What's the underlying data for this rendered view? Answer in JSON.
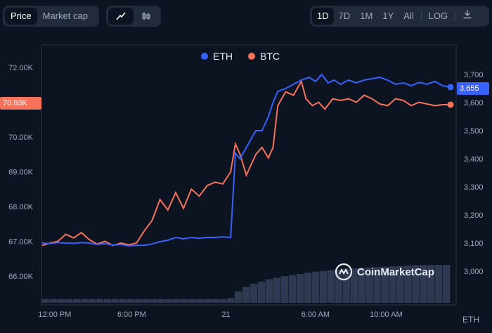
{
  "toolbar": {
    "metric_tabs": [
      {
        "label": "Price",
        "active": true
      },
      {
        "label": "Market cap",
        "active": false
      }
    ],
    "chart_type_icons": [
      "line-chart-icon",
      "candlestick-icon"
    ],
    "ranges": [
      "1D",
      "7D",
      "1M",
      "1Y",
      "All"
    ],
    "active_range": "1D",
    "log_label": "LOG",
    "download_icon": "download-icon"
  },
  "watermark": "CoinMarketCap",
  "colors": {
    "background": "#0d1421",
    "eth": "#3861fb",
    "btc": "#f7725a",
    "grid": "#2a3344",
    "volume": "#2f3a52"
  },
  "chart_data": {
    "type": "line",
    "legend": [
      "ETH",
      "BTC"
    ],
    "legend_position": "top-center",
    "x_ticks": [
      "12:00 PM",
      "6:00 PM",
      "21",
      "6:00 AM",
      "10:00 AM"
    ],
    "left_axis": {
      "ticks": [
        "66.00K",
        "67.00K",
        "68.00K",
        "69.00K",
        "70.00K",
        "72.00K"
      ],
      "current": "70.93K"
    },
    "right_axis": {
      "ticks": [
        "3,000",
        "3,100",
        "3,200",
        "3,300",
        "3,400",
        "3,500",
        "3,600",
        "3,700"
      ],
      "current": "3,655",
      "unit": "ETH"
    },
    "series": [
      {
        "name": "ETH",
        "axis": "right",
        "points": [
          [
            0,
            3100
          ],
          [
            0.5,
            3098
          ],
          [
            1,
            3102
          ],
          [
            1.5,
            3100
          ],
          [
            2,
            3099
          ],
          [
            2.5,
            3102
          ],
          [
            3,
            3100
          ],
          [
            3.5,
            3095
          ],
          [
            4,
            3098
          ],
          [
            4.5,
            3093
          ],
          [
            5,
            3095
          ],
          [
            5.5,
            3090
          ],
          [
            6,
            3092
          ],
          [
            6.5,
            3092
          ],
          [
            7,
            3097
          ],
          [
            7.5,
            3105
          ],
          [
            8,
            3110
          ],
          [
            8.5,
            3120
          ],
          [
            9,
            3115
          ],
          [
            9.5,
            3120
          ],
          [
            10,
            3117
          ],
          [
            10.5,
            3120
          ],
          [
            11,
            3120
          ],
          [
            11.5,
            3122
          ],
          [
            12,
            3120
          ],
          [
            12.3,
            3420
          ],
          [
            12.6,
            3400
          ],
          [
            13,
            3440
          ],
          [
            13.3,
            3470
          ],
          [
            13.6,
            3500
          ],
          [
            14,
            3500
          ],
          [
            14.4,
            3550
          ],
          [
            14.7,
            3600
          ],
          [
            15,
            3640
          ],
          [
            15.5,
            3650
          ],
          [
            16,
            3665
          ],
          [
            16.5,
            3680
          ],
          [
            17,
            3690
          ],
          [
            17.4,
            3675
          ],
          [
            17.8,
            3700
          ],
          [
            18.2,
            3670
          ],
          [
            18.6,
            3680
          ],
          [
            19,
            3665
          ],
          [
            19.5,
            3680
          ],
          [
            20,
            3670
          ],
          [
            20.5,
            3680
          ],
          [
            21,
            3685
          ],
          [
            21.5,
            3690
          ],
          [
            22,
            3680
          ],
          [
            22.5,
            3665
          ],
          [
            23,
            3670
          ],
          [
            23.5,
            3660
          ],
          [
            24,
            3672
          ],
          [
            24.5,
            3665
          ],
          [
            25,
            3675
          ],
          [
            25.5,
            3660
          ],
          [
            26,
            3655
          ]
        ]
      },
      {
        "name": "BTC",
        "axis": "left",
        "points": [
          [
            0,
            66.88
          ],
          [
            0.5,
            66.95
          ],
          [
            1,
            67.0
          ],
          [
            1.5,
            67.2
          ],
          [
            2,
            67.1
          ],
          [
            2.5,
            67.25
          ],
          [
            3,
            67.05
          ],
          [
            3.5,
            66.92
          ],
          [
            4,
            67.0
          ],
          [
            4.5,
            66.88
          ],
          [
            5,
            66.95
          ],
          [
            5.5,
            66.9
          ],
          [
            6,
            66.95
          ],
          [
            6.5,
            67.3
          ],
          [
            7,
            67.6
          ],
          [
            7.5,
            68.2
          ],
          [
            8,
            67.9
          ],
          [
            8.5,
            68.4
          ],
          [
            9,
            67.95
          ],
          [
            9.5,
            68.5
          ],
          [
            10,
            68.3
          ],
          [
            10.5,
            68.6
          ],
          [
            11,
            68.7
          ],
          [
            11.5,
            68.65
          ],
          [
            12,
            69.0
          ],
          [
            12.3,
            69.8
          ],
          [
            12.6,
            69.5
          ],
          [
            13,
            68.9
          ],
          [
            13.3,
            69.2
          ],
          [
            13.6,
            69.5
          ],
          [
            14,
            69.7
          ],
          [
            14.4,
            69.4
          ],
          [
            14.7,
            69.7
          ],
          [
            15,
            70.9
          ],
          [
            15.5,
            71.3
          ],
          [
            16,
            71.2
          ],
          [
            16.5,
            71.6
          ],
          [
            16.8,
            71.1
          ],
          [
            17.2,
            70.9
          ],
          [
            17.6,
            71.0
          ],
          [
            18,
            70.8
          ],
          [
            18.5,
            71.1
          ],
          [
            19,
            71.05
          ],
          [
            19.5,
            71.1
          ],
          [
            20,
            71.0
          ],
          [
            20.5,
            71.2
          ],
          [
            21,
            71.1
          ],
          [
            21.5,
            70.95
          ],
          [
            22,
            70.9
          ],
          [
            22.5,
            71.1
          ],
          [
            23,
            71.05
          ],
          [
            23.5,
            70.9
          ],
          [
            24,
            71.0
          ],
          [
            24.5,
            70.95
          ],
          [
            25,
            70.9
          ],
          [
            25.5,
            70.93
          ],
          [
            26,
            70.93
          ]
        ]
      }
    ],
    "volume": [
      0.1,
      0.1,
      0.1,
      0.1,
      0.1,
      0.1,
      0.1,
      0.1,
      0.1,
      0.1,
      0.1,
      0.1,
      0.1,
      0.1,
      0.1,
      0.1,
      0.1,
      0.1,
      0.1,
      0.1,
      0.1,
      0.1,
      0.1,
      0.1,
      0.12,
      0.3,
      0.42,
      0.5,
      0.56,
      0.62,
      0.66,
      0.7,
      0.73,
      0.76,
      0.79,
      0.82,
      0.84,
      0.86,
      0.88,
      0.9,
      0.91,
      0.92,
      0.93,
      0.94,
      0.95,
      0.96,
      0.97,
      0.98,
      0.99,
      1.0,
      1.0,
      1.0,
      1.0
    ]
  }
}
